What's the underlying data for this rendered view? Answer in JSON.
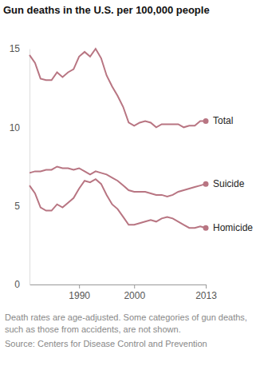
{
  "chart_data": {
    "type": "line",
    "title": "Gun deaths in the U.S. per 100,000 people",
    "x": [
      1981,
      1982,
      1983,
      1984,
      1985,
      1986,
      1987,
      1988,
      1989,
      1990,
      1991,
      1992,
      1993,
      1994,
      1995,
      1996,
      1997,
      1998,
      1999,
      2000,
      2001,
      2002,
      2003,
      2004,
      2005,
      2006,
      2007,
      2008,
      2009,
      2010,
      2011,
      2012,
      2013
    ],
    "series": [
      {
        "name": "Total",
        "color": "#b87582",
        "values": [
          14.6,
          14.1,
          13.1,
          13.0,
          13.0,
          13.5,
          13.2,
          13.5,
          13.7,
          14.5,
          14.8,
          14.5,
          15.0,
          14.4,
          13.3,
          12.6,
          12.0,
          11.3,
          10.3,
          10.1,
          10.3,
          10.4,
          10.3,
          10.0,
          10.2,
          10.2,
          10.2,
          10.2,
          10.0,
          10.1,
          10.1,
          10.4,
          10.4
        ]
      },
      {
        "name": "Suicide",
        "color": "#b87582",
        "values": [
          7.1,
          7.2,
          7.2,
          7.3,
          7.3,
          7.5,
          7.4,
          7.4,
          7.3,
          7.4,
          7.2,
          7.0,
          7.2,
          7.1,
          7.0,
          6.8,
          6.6,
          6.3,
          6.0,
          5.9,
          5.9,
          5.9,
          5.8,
          5.7,
          5.7,
          5.6,
          5.7,
          5.9,
          6.0,
          6.1,
          6.2,
          6.3,
          6.4
        ]
      },
      {
        "name": "Homicide",
        "color": "#b87582",
        "values": [
          6.3,
          5.8,
          4.9,
          4.7,
          4.7,
          5.1,
          4.9,
          5.2,
          5.5,
          6.1,
          6.6,
          6.5,
          6.7,
          6.4,
          5.7,
          5.1,
          4.8,
          4.3,
          3.8,
          3.8,
          3.9,
          4.0,
          4.1,
          4.0,
          4.2,
          4.3,
          4.2,
          4.0,
          3.8,
          3.6,
          3.6,
          3.7,
          3.6
        ]
      }
    ],
    "xlim": [
      1981,
      2013
    ],
    "xticks": [
      1990,
      2000,
      2013
    ],
    "ylim": [
      0,
      15
    ],
    "yticks": [
      0,
      5,
      10,
      15
    ],
    "grid": false,
    "annotations": [
      "Death rates are age-adjusted. Some categories of gun deaths, such as those from accidents, are not shown.",
      "Source: Centers for Disease Control and Prevention"
    ]
  }
}
